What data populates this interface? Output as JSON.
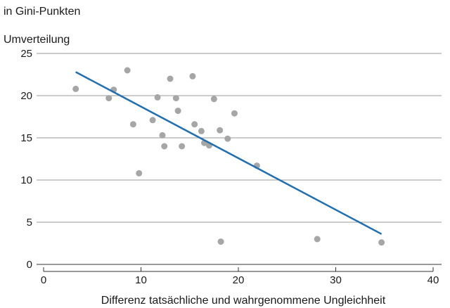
{
  "chart_data": {
    "type": "scatter",
    "subtitle": "in Gini-Punkten",
    "ylabel": "Umverteilung",
    "xlabel": "Differenz tatsächliche und wahrgenommene Ungleichheit",
    "xlim": [
      0,
      40
    ],
    "ylim": [
      0,
      25
    ],
    "x_ticks": [
      0,
      10,
      20,
      30,
      40
    ],
    "y_ticks": [
      0,
      5,
      10,
      15,
      20,
      25
    ],
    "grid": "horizontal",
    "colors": {
      "points": "#a6a6a6",
      "trend": "#1f6fb2",
      "grid": "#9a9a9a",
      "axis": "#333333"
    },
    "points": [
      {
        "x": 3.3,
        "y": 20.8
      },
      {
        "x": 6.7,
        "y": 19.7
      },
      {
        "x": 7.2,
        "y": 20.7
      },
      {
        "x": 8.6,
        "y": 23.0
      },
      {
        "x": 9.2,
        "y": 16.6
      },
      {
        "x": 9.8,
        "y": 10.8
      },
      {
        "x": 11.2,
        "y": 17.1
      },
      {
        "x": 11.7,
        "y": 19.8
      },
      {
        "x": 12.2,
        "y": 15.3
      },
      {
        "x": 12.4,
        "y": 14.0
      },
      {
        "x": 13.0,
        "y": 22.0
      },
      {
        "x": 13.6,
        "y": 19.7
      },
      {
        "x": 13.8,
        "y": 18.2
      },
      {
        "x": 14.2,
        "y": 14.0
      },
      {
        "x": 15.3,
        "y": 22.3
      },
      {
        "x": 15.5,
        "y": 16.6
      },
      {
        "x": 16.2,
        "y": 15.8
      },
      {
        "x": 16.5,
        "y": 14.4
      },
      {
        "x": 17.0,
        "y": 14.1
      },
      {
        "x": 17.5,
        "y": 19.6
      },
      {
        "x": 18.1,
        "y": 15.9
      },
      {
        "x": 18.2,
        "y": 2.7
      },
      {
        "x": 18.9,
        "y": 14.9
      },
      {
        "x": 19.6,
        "y": 17.9
      },
      {
        "x": 21.9,
        "y": 11.7
      },
      {
        "x": 28.1,
        "y": 3.0
      },
      {
        "x": 34.7,
        "y": 2.6
      }
    ],
    "trendline": {
      "x": [
        3.3,
        34.7
      ],
      "y": [
        22.8,
        3.6
      ]
    }
  }
}
